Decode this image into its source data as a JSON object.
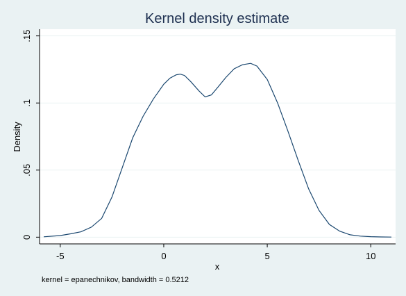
{
  "chart_data": {
    "type": "line",
    "title": "Kernel density estimate",
    "xlabel": "x",
    "ylabel": "Density",
    "note": "kernel = epanechnikov, bandwidth = 0.5212",
    "xlim": [
      -6.0,
      11.2
    ],
    "ylim": [
      -0.005,
      0.155
    ],
    "x_ticks": [
      -5,
      0,
      5,
      10
    ],
    "x_tick_labels": [
      "-5",
      "0",
      "5",
      "10"
    ],
    "y_ticks": [
      0,
      0.05,
      0.1,
      0.15
    ],
    "y_tick_labels": [
      "0",
      ".05",
      ".1",
      ".15"
    ],
    "grid": true,
    "legend": "none",
    "colors": {
      "background": "#eaf2f3",
      "plot_background": "#ffffff",
      "line": "#1a476f",
      "grid": "#eaf2f3",
      "title": "#1e3050"
    },
    "series": [
      {
        "x": [
          -5.8,
          -5.0,
          -4.5,
          -4.0,
          -3.5,
          -3.0,
          -2.5,
          -2.0,
          -1.5,
          -1.0,
          -0.5,
          0.0,
          0.3,
          0.6,
          0.8,
          1.0,
          1.3,
          1.7,
          2.0,
          2.3,
          2.6,
          3.0,
          3.4,
          3.8,
          4.2,
          4.5,
          5.0,
          5.5,
          6.0,
          6.5,
          7.0,
          7.5,
          8.0,
          8.5,
          9.0,
          9.5,
          10.0,
          10.5,
          11.0
        ],
        "y": [
          0.0003,
          0.0012,
          0.0025,
          0.004,
          0.0075,
          0.014,
          0.03,
          0.052,
          0.074,
          0.09,
          0.103,
          0.114,
          0.1185,
          0.121,
          0.1215,
          0.1205,
          0.116,
          0.109,
          0.1045,
          0.106,
          0.1115,
          0.119,
          0.1255,
          0.1285,
          0.1295,
          0.1275,
          0.1175,
          0.1,
          0.079,
          0.057,
          0.036,
          0.02,
          0.0095,
          0.0045,
          0.0018,
          0.0008,
          0.0004,
          0.0002,
          0.0001
        ]
      }
    ]
  }
}
